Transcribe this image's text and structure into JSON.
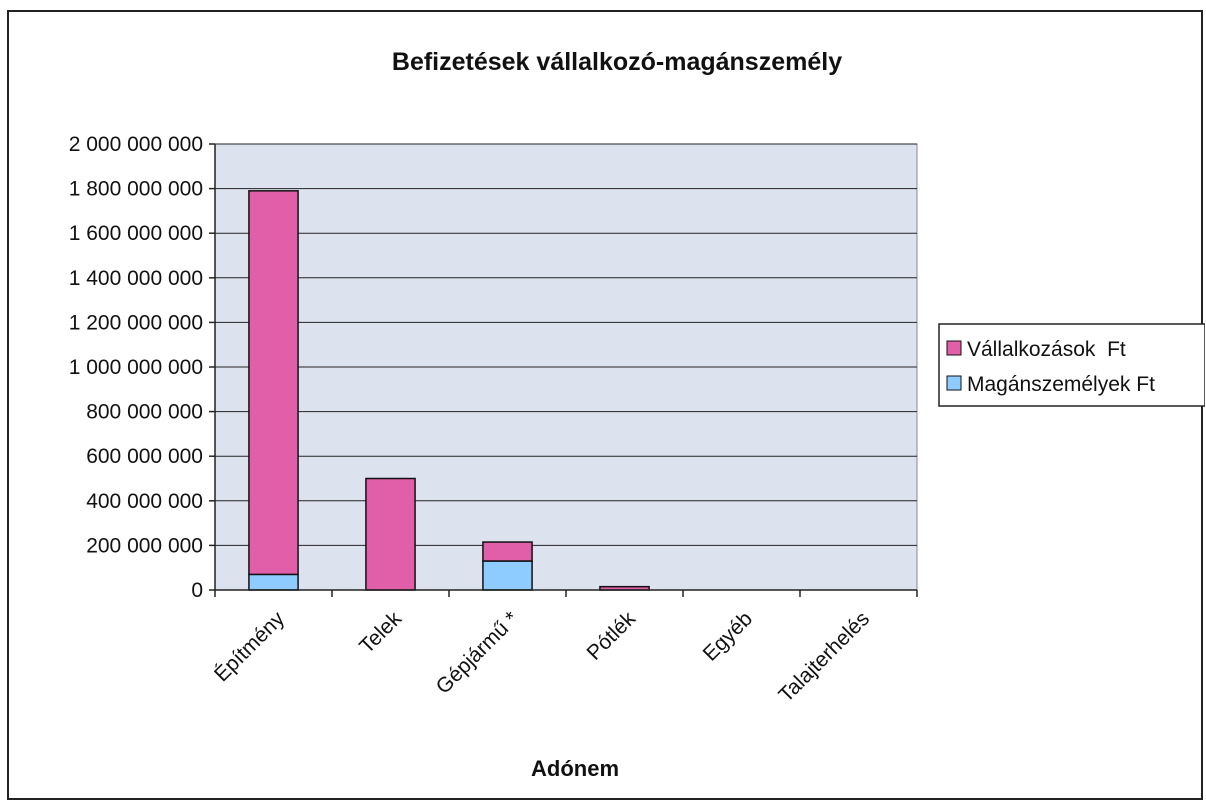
{
  "chart_data": {
    "type": "bar",
    "stacked": true,
    "title": "Befizetések vállalkozó-magánszemély",
    "xlabel": "Adónem",
    "ylabel": "",
    "ylim": [
      0,
      2000000000
    ],
    "ytick_step": 200000000,
    "y_tick_labels": [
      "0",
      "200 000 000",
      "400 000 000",
      "600 000 000",
      "800 000 000",
      "1 000 000 000",
      "1 200 000 000",
      "1 400 000 000",
      "1 600 000 000",
      "1 800 000 000",
      "2 000 000 000"
    ],
    "categories": [
      "Építmény",
      "Telek",
      "Gépjármű *",
      "Pótlék",
      "Egyéb",
      "Talajterhelés"
    ],
    "series": [
      {
        "name": "Magánszemélyek Ft",
        "color": "#8ecbff",
        "values": [
          70000000,
          0,
          130000000,
          0,
          0,
          0
        ]
      },
      {
        "name": "Vállalkozások  Ft",
        "color": "#e05fa8",
        "values": [
          1720000000,
          500000000,
          85000000,
          15000000,
          0,
          0
        ]
      }
    ],
    "legend": [
      "Vállalkozások  Ft",
      "Magánszemélyek Ft"
    ],
    "legend_position": "right",
    "grid": true,
    "plot_background": "#dde3ee"
  }
}
